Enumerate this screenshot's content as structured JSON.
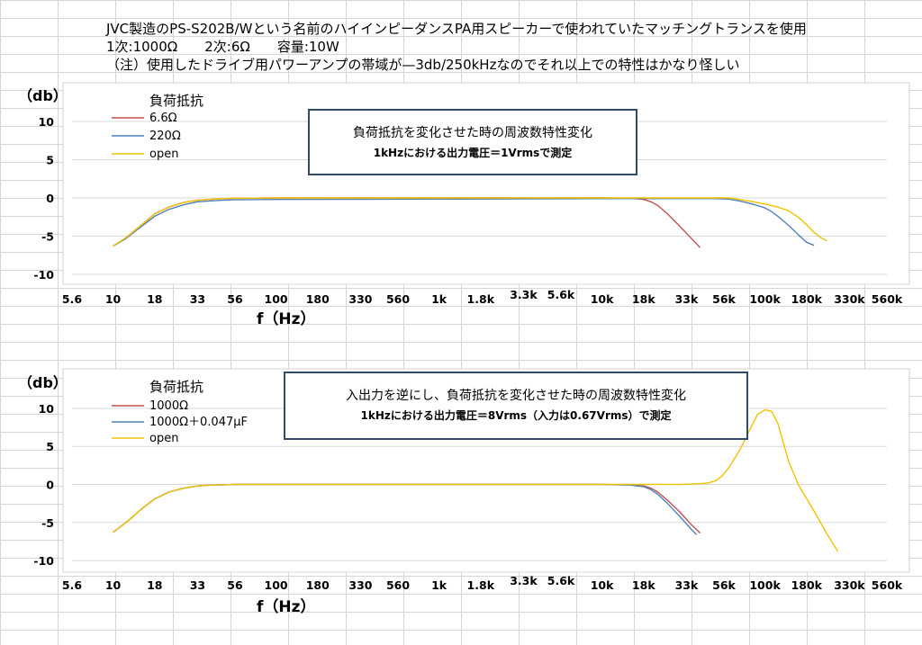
{
  "header": {
    "line1": "JVC製造のPS-S202B/Wという名前のハイインピーダンスPA用スピーカーで使われていたマッチングトランスを使用",
    "line2": "1次:1000Ω　　2次:6Ω　　容量:10W",
    "line3": "（注）使用したドライブ用パワーアンプの帯域が—3db/250kHzなのでそれ以上での特性はかなり怪しい"
  },
  "chart_data": [
    {
      "type": "line",
      "yunit": "（db）",
      "xlabel": "f（Hz）",
      "xscale": "log",
      "xlim": [
        5.6,
        560000
      ],
      "ylim": [
        -12,
        12
      ],
      "x_tick_values": [
        5.6,
        10,
        18,
        33,
        56,
        100,
        180,
        330,
        560,
        1000,
        1800,
        3300,
        5600,
        10000,
        18000,
        33000,
        56000,
        100000,
        180000,
        330000,
        560000
      ],
      "x_tick_labels": [
        "5.6",
        "10",
        "18",
        "33",
        "56",
        "100",
        "180",
        "330",
        "560",
        "1k",
        "1.8k",
        "3.3k",
        "5.6k",
        "10k",
        "18k",
        "33k",
        "56k",
        "100k",
        "180k",
        "330k",
        "560k"
      ],
      "y_ticks": [
        10,
        5,
        0,
        -5,
        -10
      ],
      "legend_title": "負荷抵抗",
      "note": {
        "line1": "負荷抵抗を変化させた時の周波数特性変化",
        "line2": "1kHzにおける出力電圧＝1Vrmsで測定"
      },
      "series": [
        {
          "name": "6.6Ω",
          "color": "#c0504d",
          "x": [
            10,
            12,
            15,
            18,
            22,
            27,
            33,
            39,
            47,
            56,
            100,
            1000,
            10000,
            15000,
            18000,
            20000,
            22000,
            25000,
            30000,
            35000,
            40000
          ],
          "y": [
            -6.3,
            -5.2,
            -3.5,
            -2.1,
            -1.2,
            -0.6,
            -0.3,
            -0.2,
            -0.1,
            -0.05,
            0,
            0,
            0,
            -0.05,
            -0.2,
            -0.5,
            -1.0,
            -2.0,
            -3.7,
            -5.2,
            -6.5
          ]
        },
        {
          "name": "220Ω",
          "color": "#4f81bd",
          "x": [
            10,
            12,
            15,
            18,
            22,
            27,
            33,
            39,
            47,
            56,
            100,
            1000,
            10000,
            50000,
            60000,
            70000,
            80000,
            90000,
            100000,
            110000,
            120000,
            140000,
            160000,
            180000,
            200000
          ],
          "y": [
            -6.3,
            -5.3,
            -3.7,
            -2.4,
            -1.5,
            -0.9,
            -0.5,
            -0.4,
            -0.3,
            -0.25,
            -0.2,
            -0.15,
            -0.1,
            -0.1,
            -0.15,
            -0.4,
            -0.7,
            -1.0,
            -1.3,
            -1.8,
            -2.4,
            -3.6,
            -4.8,
            -5.8,
            -6.2
          ]
        },
        {
          "name": "open",
          "color": "#f2c200",
          "x": [
            10,
            12,
            15,
            18,
            22,
            27,
            33,
            39,
            47,
            56,
            100,
            1000,
            10000,
            50000,
            60000,
            80000,
            100000,
            120000,
            140000,
            160000,
            180000,
            200000,
            220000,
            240000
          ],
          "y": [
            -6.3,
            -5.2,
            -3.5,
            -2.1,
            -1.2,
            -0.6,
            -0.3,
            -0.2,
            -0.1,
            -0.05,
            0,
            0,
            0,
            0,
            0,
            -0.4,
            -0.8,
            -1.2,
            -1.7,
            -2.5,
            -3.5,
            -4.5,
            -5.2,
            -5.6
          ]
        }
      ]
    },
    {
      "type": "line",
      "yunit": "（db）",
      "xlabel": "f（Hz）",
      "xscale": "log",
      "xlim": [
        5.6,
        560000
      ],
      "ylim": [
        -12,
        12
      ],
      "x_tick_values": [
        5.6,
        10,
        18,
        33,
        56,
        100,
        180,
        330,
        560,
        1000,
        1800,
        3300,
        5600,
        10000,
        18000,
        33000,
        56000,
        100000,
        180000,
        330000,
        560000
      ],
      "x_tick_labels": [
        "5.6",
        "10",
        "18",
        "33",
        "56",
        "100",
        "180",
        "330",
        "560",
        "1k",
        "1.8k",
        "3.3k",
        "5.6k",
        "10k",
        "18k",
        "33k",
        "56k",
        "100k",
        "180k",
        "330k",
        "560k"
      ],
      "y_ticks": [
        10,
        5,
        0,
        -5,
        -10
      ],
      "legend_title": "負荷抵抗",
      "note": {
        "line1": "入出力を逆にし、負荷抵抗を変化させた時の周波数特性変化",
        "line2": "1kHzにおける出力電圧＝8Vrms（入力は0.67Vrms）で測定"
      },
      "series": [
        {
          "name": "1000Ω",
          "color": "#c0504d",
          "x": [
            10,
            12,
            15,
            18,
            22,
            27,
            33,
            39,
            47,
            56,
            100,
            1000,
            10000,
            15000,
            18000,
            20000,
            22000,
            25000,
            30000,
            35000,
            40000
          ],
          "y": [
            -6.3,
            -5.0,
            -3.2,
            -1.9,
            -1.0,
            -0.5,
            -0.2,
            -0.1,
            -0.05,
            0,
            0,
            0,
            0,
            -0.05,
            -0.2,
            -0.5,
            -1.0,
            -2.0,
            -3.6,
            -5.2,
            -6.4
          ]
        },
        {
          "name": "1000Ω＋0.047μF",
          "color": "#4f81bd",
          "x": [
            10,
            12,
            15,
            18,
            22,
            27,
            33,
            39,
            47,
            56,
            100,
            1000,
            10000,
            15000,
            18000,
            20000,
            22000,
            25000,
            30000,
            35000,
            38000
          ],
          "y": [
            -6.3,
            -5.0,
            -3.2,
            -1.9,
            -1.0,
            -0.5,
            -0.2,
            -0.1,
            -0.05,
            0,
            0,
            0,
            0,
            -0.1,
            -0.3,
            -0.7,
            -1.3,
            -2.4,
            -4.2,
            -5.8,
            -6.6
          ]
        },
        {
          "name": "open",
          "color": "#f2c200",
          "x": [
            10,
            12,
            15,
            18,
            22,
            27,
            33,
            39,
            47,
            56,
            100,
            1000,
            10000,
            18000,
            30000,
            40000,
            45000,
            50000,
            55000,
            60000,
            70000,
            80000,
            90000,
            100000,
            110000,
            120000,
            140000,
            160000,
            200000,
            240000,
            280000
          ],
          "y": [
            -6.3,
            -5.0,
            -3.2,
            -1.9,
            -1.0,
            -0.5,
            -0.2,
            -0.1,
            -0.05,
            0,
            0,
            0,
            0,
            0,
            0,
            0.1,
            0.2,
            0.5,
            1.2,
            2.2,
            4.5,
            7.0,
            9.2,
            9.8,
            9.6,
            8.0,
            3.0,
            0,
            -3.5,
            -6.5,
            -8.8
          ]
        }
      ]
    }
  ]
}
